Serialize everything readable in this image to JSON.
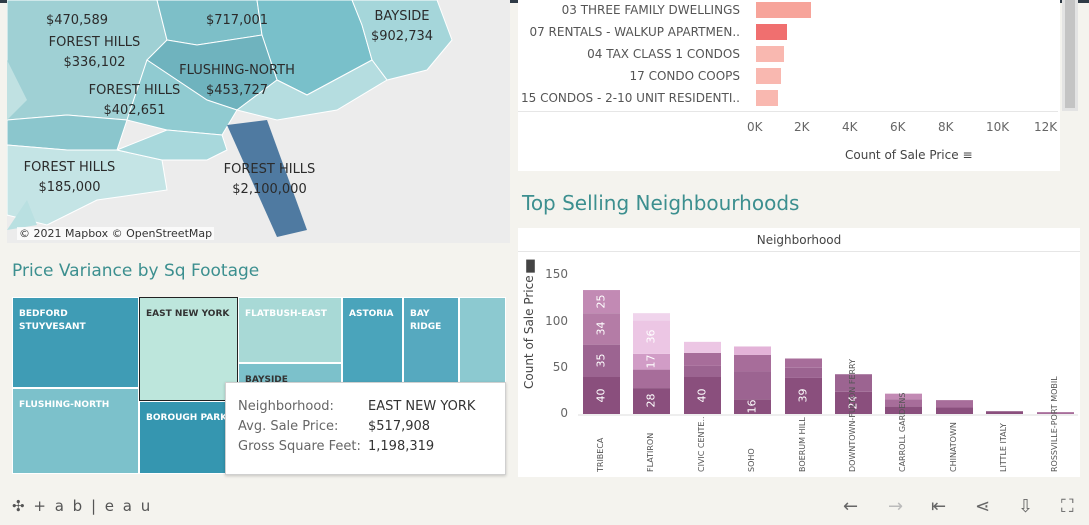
{
  "map": {
    "labels": [
      {
        "name": "",
        "price": "$470,589"
      },
      {
        "name": "",
        "price": "$717,001"
      },
      {
        "name": "BAYSIDE",
        "price": "$902,734"
      },
      {
        "name": "FOREST HILLS",
        "price": "$336,102"
      },
      {
        "name": "FLUSHING-NORTH",
        "price": "$453,727"
      },
      {
        "name": "FOREST HILLS",
        "price": "$402,651"
      },
      {
        "name": "FOREST HILLS",
        "price": "$185,000"
      },
      {
        "name": "FOREST HILLS",
        "price": "$2,100,000"
      }
    ],
    "attribution": "© 2021 Mapbox  © OpenStreetMap"
  },
  "treemap": {
    "title": "Price Variance by Sq Footage",
    "tiles": [
      "BEDFORD STUYVESANT",
      "EAST NEW YORK",
      "FLATBUSH-EAST",
      "ASTORIA",
      "BAY RIDGE",
      "BAYSIDE",
      "FLUSHING-NORTH",
      "BOROUGH PARK"
    ]
  },
  "tooltip": {
    "rows": [
      {
        "key": "Neighborhood:",
        "value": "EAST NEW YORK"
      },
      {
        "key": "Avg. Sale Price:",
        "value": "$517,908"
      },
      {
        "key": "Gross Square Feet:",
        "value": "1,198,319"
      }
    ]
  },
  "building_chart": {
    "categories": [
      "03 THREE FAMILY DWELLINGS",
      "07 RENTALS - WALKUP APARTMEN..",
      "04 TAX CLASS 1 CONDOS",
      "17 CONDO COOPS",
      "15 CONDOS - 2-10 UNIT RESIDENTI.."
    ],
    "values": [
      2300,
      1300,
      1150,
      1050,
      900
    ],
    "xticks": [
      "0K",
      "2K",
      "4K",
      "6K",
      "8K",
      "10K",
      "12K"
    ],
    "xlabel": "Count of Sale Price",
    "colors": [
      "#f7a49a",
      "#f06f6f",
      "#f9b8b0",
      "#f9b8b0",
      "#f9b8b0"
    ]
  },
  "neighbourhoods": {
    "title": "Top Selling Neighbourhoods",
    "header": "Neighborhood",
    "ylabel": "Count of Sale Price",
    "yticks": [
      "0",
      "50",
      "100",
      "150"
    ]
  },
  "chart_data": {
    "type": "bar",
    "stacked": true,
    "title": "Top Selling Neighbourhoods",
    "xlabel": "Neighborhood",
    "ylabel": "Count of Sale Price",
    "ylim": [
      0,
      170
    ],
    "categories": [
      "TRIBECA",
      "FLATIRON",
      "CIVIC CENTE..",
      "SOHO",
      "BOERUM HILL",
      "DOWNTOWN-FULTON FERRY",
      "CARROLL GARDENS",
      "CHINATOWN",
      "LITTLE ITALY",
      "ROSSVILLE-PORT MOBIL"
    ],
    "segments": [
      [
        {
          "v": 40,
          "c": "#8a4f7d",
          "l": "40"
        },
        {
          "v": 35,
          "c": "#9c6491",
          "l": "35"
        },
        {
          "v": 34,
          "c": "#b47ca6",
          "l": "34"
        },
        {
          "v": 25,
          "c": "#c28ab4",
          "l": "25"
        }
      ],
      [
        {
          "v": 28,
          "c": "#8a4f7d",
          "l": "28"
        },
        {
          "v": 20,
          "c": "#a76d9a",
          "l": ""
        },
        {
          "v": 17,
          "c": "#d19cc6",
          "l": "17"
        },
        {
          "v": 36,
          "c": "#ecc6e4",
          "l": "36"
        },
        {
          "v": 8,
          "c": "#f0d4ec",
          "l": ""
        }
      ],
      [
        {
          "v": 40,
          "c": "#8a4f7d",
          "l": "40"
        },
        {
          "v": 12,
          "c": "#9c6491",
          "l": ""
        },
        {
          "v": 14,
          "c": "#a76d9a",
          "l": ""
        },
        {
          "v": 12,
          "c": "#ecc6e4",
          "l": ""
        }
      ],
      [
        {
          "v": 16,
          "c": "#8a4f7d",
          "l": "16"
        },
        {
          "v": 30,
          "c": "#9c6491",
          "l": ""
        },
        {
          "v": 18,
          "c": "#a76d9a",
          "l": ""
        },
        {
          "v": 9,
          "c": "#e3b3d8",
          "l": ""
        }
      ],
      [
        {
          "v": 39,
          "c": "#8a4f7d",
          "l": "39"
        },
        {
          "v": 11,
          "c": "#9c6491",
          "l": ""
        },
        {
          "v": 10,
          "c": "#a76d9a",
          "l": ""
        }
      ],
      [
        {
          "v": 24,
          "c": "#8a4f7d",
          "l": "24"
        },
        {
          "v": 19,
          "c": "#9c6491",
          "l": ""
        }
      ],
      [
        {
          "v": 8,
          "c": "#8a4f7d",
          "l": ""
        },
        {
          "v": 8,
          "c": "#a76d9a",
          "l": ""
        },
        {
          "v": 6,
          "c": "#c28ab4",
          "l": ""
        }
      ],
      [
        {
          "v": 7,
          "c": "#8a4f7d",
          "l": ""
        },
        {
          "v": 8,
          "c": "#a76d9a",
          "l": ""
        }
      ],
      [
        {
          "v": 3,
          "c": "#8a4f7d",
          "l": ""
        }
      ],
      [
        {
          "v": 2,
          "c": "#a76d9a",
          "l": ""
        }
      ]
    ]
  },
  "footer": {
    "logo": "+ a b | e a u"
  }
}
